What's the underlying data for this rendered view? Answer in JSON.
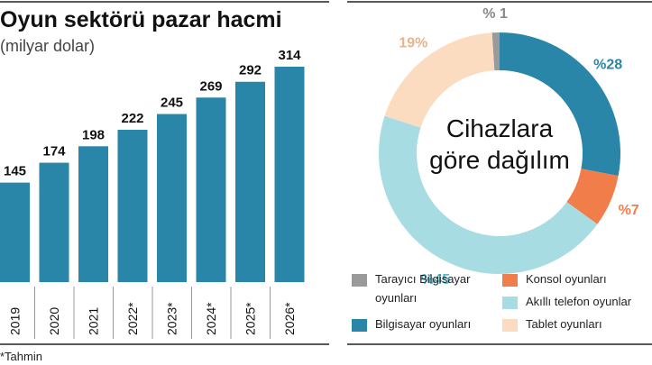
{
  "chart_data": [
    {
      "type": "bar",
      "title": "Oyun sektörü pazar hacmi",
      "subtitle": "(milyar dolar)",
      "categories": [
        "2019",
        "2020",
        "2021",
        "2022*",
        "2023*",
        "2024*",
        "2025*",
        "2026*"
      ],
      "values": [
        145,
        174,
        198,
        222,
        245,
        269,
        292,
        314
      ],
      "color": "#2a86a8",
      "note": "*Tahmin"
    },
    {
      "type": "donut",
      "center_text": [
        "Cihazlara",
        "göre dağılım"
      ],
      "categories": [
        "Tarayıcı Bilgisayar oyunları",
        "Bilgisayar oyunları",
        "Konsol oyunları",
        "Akıllı telefon oyunlar",
        "Tablet oyunları"
      ],
      "values": [
        1,
        28,
        7,
        45,
        19
      ],
      "value_labels": [
        "% 1",
        "%28",
        "%7",
        "%45",
        "19%"
      ],
      "colors": [
        "#9a9a9a",
        "#2a86a8",
        "#f07d4a",
        "#a8dce3",
        "#fbdcc0"
      ]
    }
  ]
}
